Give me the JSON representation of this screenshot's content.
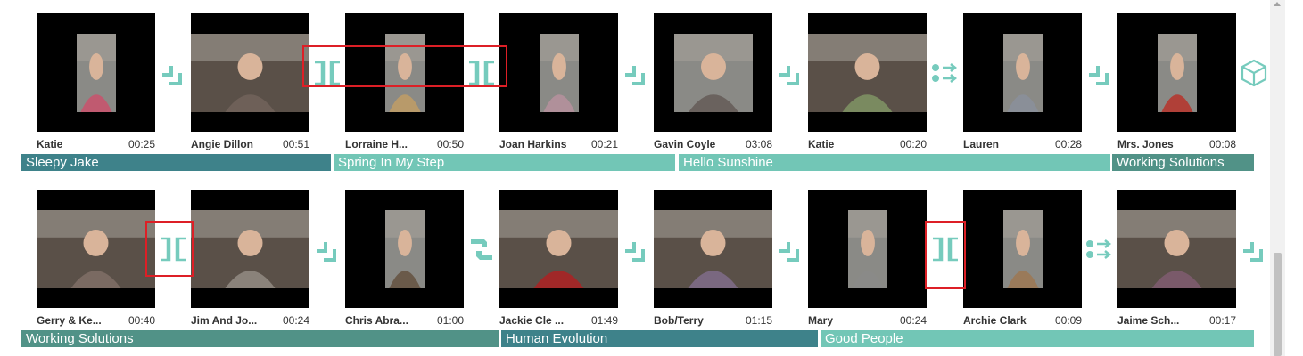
{
  "colors": {
    "teal_dark": "#3e828a",
    "teal_light": "#72c6b6",
    "teal_mid": "#519287",
    "highlight_red": "#dd1f26",
    "icon_teal": "#76cbbd"
  },
  "row1": {
    "clips": [
      {
        "name": "Katie",
        "duration": "00:25",
        "thumb": "portrait",
        "tone": "#c05a70"
      },
      {
        "name": "Angie Dillon",
        "duration": "00:51",
        "thumb": "landscape",
        "tone": "#6e6058"
      },
      {
        "name": "Lorraine H...",
        "duration": "00:50",
        "thumb": "portrait",
        "tone": "#b89a6a"
      },
      {
        "name": "Joan Harkins",
        "duration": "00:21",
        "thumb": "portrait",
        "tone": "#b0909a"
      },
      {
        "name": "Gavin Coyle",
        "duration": "03:08",
        "thumb": "square",
        "tone": "#6a625e"
      },
      {
        "name": "Katie",
        "duration": "00:20",
        "thumb": "landscape",
        "tone": "#7a8a60"
      },
      {
        "name": "Lauren",
        "duration": "00:28",
        "thumb": "portrait",
        "tone": "#8a8f98"
      },
      {
        "name": "Mrs. Jones",
        "duration": "00:08",
        "thumb": "portrait",
        "tone": "#b04038"
      }
    ],
    "transitions": [
      "cut-icon",
      "split-transition-icon",
      "split-transition-icon",
      "cut-icon",
      "cut-icon",
      "dots-arrows-icon",
      "cut-icon",
      "cube-icon"
    ],
    "scenes": [
      {
        "label": "Sleepy Jake",
        "color": "#3e828a"
      },
      {
        "label": "Spring In My Step",
        "color": "#72c6b6"
      },
      {
        "label": "Hello Sunshine",
        "color": "#72c6b6"
      },
      {
        "label": "Working Solutions",
        "color": "#519287"
      }
    ]
  },
  "row2": {
    "clips": [
      {
        "name": "Gerry & Ke...",
        "duration": "00:40",
        "thumb": "landscape",
        "tone": "#7a6a62"
      },
      {
        "name": "Jim And Jo...",
        "duration": "00:24",
        "thumb": "landscape",
        "tone": "#8a827a"
      },
      {
        "name": "Chris Abra...",
        "duration": "01:00",
        "thumb": "portrait",
        "tone": "#6a5a4a"
      },
      {
        "name": "Jackie Cle ...",
        "duration": "01:49",
        "thumb": "landscape",
        "tone": "#a02828"
      },
      {
        "name": "Bob/Terry",
        "duration": "01:15",
        "thumb": "landscape",
        "tone": "#7a6880"
      },
      {
        "name": "Mary",
        "duration": "00:24",
        "thumb": "portrait",
        "tone": "#8a8a88"
      },
      {
        "name": "Archie Clark",
        "duration": "00:09",
        "thumb": "portrait",
        "tone": "#9a7a5a"
      },
      {
        "name": "Jaime Sch...",
        "duration": "00:17",
        "thumb": "landscape",
        "tone": "#7a5a6a"
      }
    ],
    "transitions": [
      "split-transition-icon",
      "cut-icon",
      "swap-icon",
      "cut-icon",
      "cut-icon",
      "split-transition-icon",
      "dots-arrows-icon",
      "cut-icon"
    ],
    "scenes": [
      {
        "label": "Working Solutions",
        "color": "#519287"
      },
      {
        "label": "Human Evolution",
        "color": "#3e828a"
      },
      {
        "label": "Good People",
        "color": "#72c6b6"
      }
    ]
  }
}
